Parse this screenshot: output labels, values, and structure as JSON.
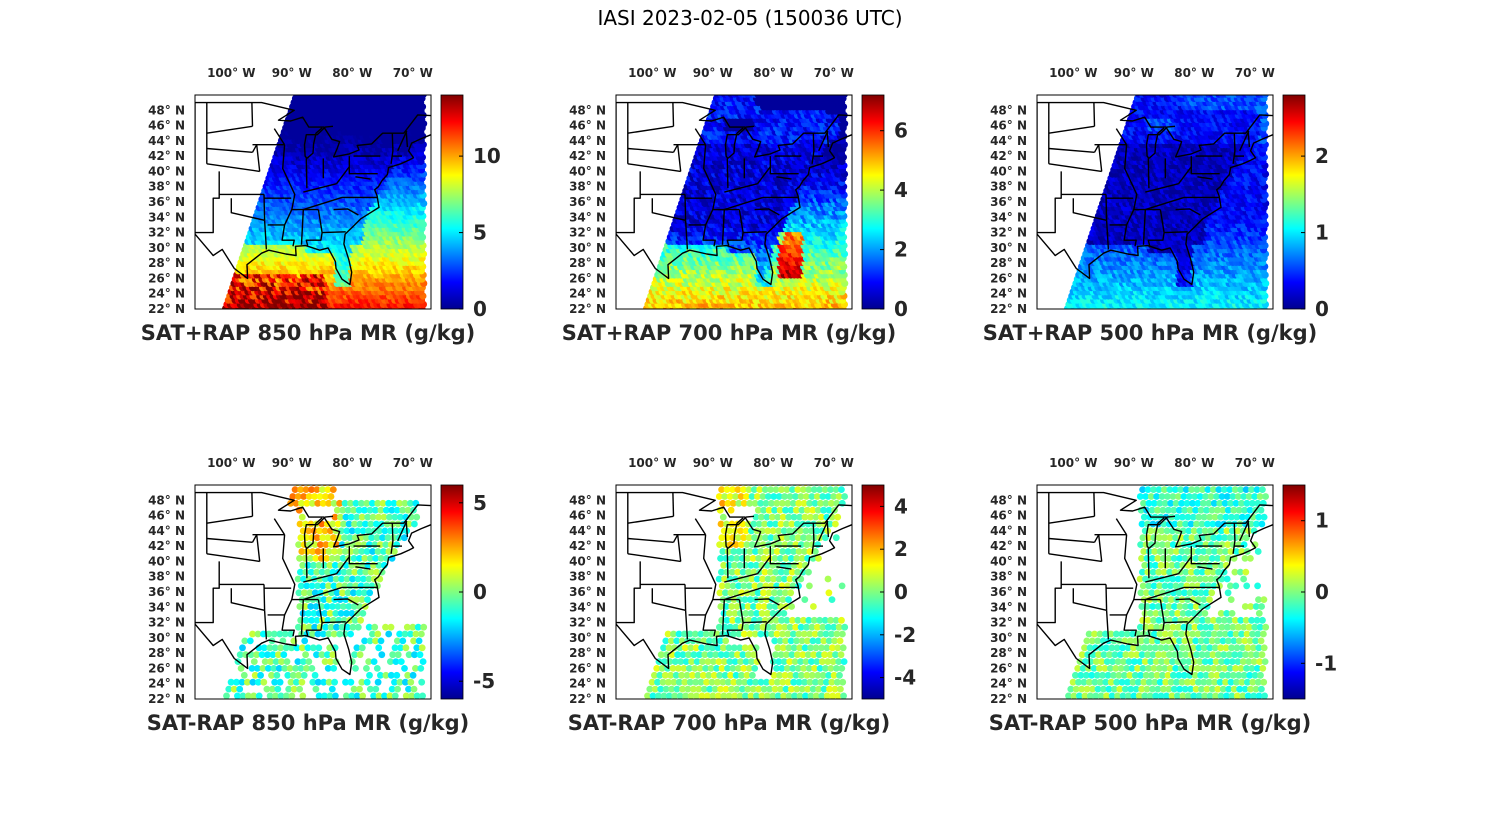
{
  "title": "IASI 2023-02-05 (150036 UTC)",
  "lon_ticks": [
    {
      "value": -100,
      "label": "100° W"
    },
    {
      "value": -90,
      "label": "90° W"
    },
    {
      "value": -80,
      "label": "80° W"
    },
    {
      "value": -70,
      "label": "70° W"
    }
  ],
  "lat_ticks": [
    {
      "value": 48,
      "label": "48° N"
    },
    {
      "value": 46,
      "label": "46° N"
    },
    {
      "value": 44,
      "label": "44° N"
    },
    {
      "value": 42,
      "label": "42° N"
    },
    {
      "value": 40,
      "label": "40° N"
    },
    {
      "value": 38,
      "label": "38° N"
    },
    {
      "value": 36,
      "label": "36° N"
    },
    {
      "value": 34,
      "label": "34° N"
    },
    {
      "value": 32,
      "label": "32° N"
    },
    {
      "value": 30,
      "label": "30° N"
    },
    {
      "value": 28,
      "label": "28° N"
    },
    {
      "value": 26,
      "label": "26° N"
    },
    {
      "value": 24,
      "label": "24° N"
    },
    {
      "value": 22,
      "label": "22° N"
    }
  ],
  "map_extent": {
    "lon_min": -106,
    "lon_max": -67,
    "lat_min": 22,
    "lat_max": 50
  },
  "colormap": "jet",
  "colormap_stops": [
    "#00008f",
    "#0000ff",
    "#0080ff",
    "#00ffff",
    "#80ff80",
    "#ffff00",
    "#ff8000",
    "#ff0000",
    "#800000"
  ],
  "panels": [
    {
      "id": "sat-rap-850",
      "title": "SAT+RAP 850 hPa MR (g/kg)",
      "cbar_range": [
        0,
        14
      ],
      "cbar_ticks": [
        {
          "value": 0,
          "label": "0"
        },
        {
          "value": 5,
          "label": "5"
        },
        {
          "value": 10,
          "label": "10"
        }
      ],
      "field": "total",
      "level": 850
    },
    {
      "id": "sat-rap-700",
      "title": "SAT+RAP 700 hPa MR (g/kg)",
      "cbar_range": [
        0,
        7.2
      ],
      "cbar_ticks": [
        {
          "value": 0,
          "label": "0"
        },
        {
          "value": 2,
          "label": "2"
        },
        {
          "value": 4,
          "label": "4"
        },
        {
          "value": 6,
          "label": "6"
        }
      ],
      "field": "total",
      "level": 700
    },
    {
      "id": "sat-rap-500",
      "title": "SAT+RAP 500 hPa MR (g/kg)",
      "cbar_range": [
        0,
        2.8
      ],
      "cbar_ticks": [
        {
          "value": 0,
          "label": "0"
        },
        {
          "value": 1,
          "label": "1"
        },
        {
          "value": 2,
          "label": "2"
        }
      ],
      "field": "total",
      "level": 500
    },
    {
      "id": "sat-minus-rap-850",
      "title": "SAT-RAP 850 hPa MR (g/kg)",
      "cbar_range": [
        -6,
        6
      ],
      "cbar_ticks": [
        {
          "value": -5,
          "label": "-5"
        },
        {
          "value": 0,
          "label": "0"
        },
        {
          "value": 5,
          "label": "5"
        }
      ],
      "field": "diff",
      "level": 850
    },
    {
      "id": "sat-minus-rap-700",
      "title": "SAT-RAP 700 hPa MR (g/kg)",
      "cbar_range": [
        -5,
        5
      ],
      "cbar_ticks": [
        {
          "value": -4,
          "label": "-4"
        },
        {
          "value": -2,
          "label": "-2"
        },
        {
          "value": 0,
          "label": "0"
        },
        {
          "value": 2,
          "label": "2"
        },
        {
          "value": 4,
          "label": "4"
        }
      ],
      "field": "diff",
      "level": 700
    },
    {
      "id": "sat-minus-rap-500",
      "title": "SAT-RAP 500 hPa MR (g/kg)",
      "cbar_range": [
        -1.5,
        1.5
      ],
      "cbar_ticks": [
        {
          "value": -1,
          "label": "-1"
        },
        {
          "value": 0,
          "label": "0"
        },
        {
          "value": 1,
          "label": "1"
        }
      ],
      "field": "diff",
      "level": 500
    }
  ]
}
